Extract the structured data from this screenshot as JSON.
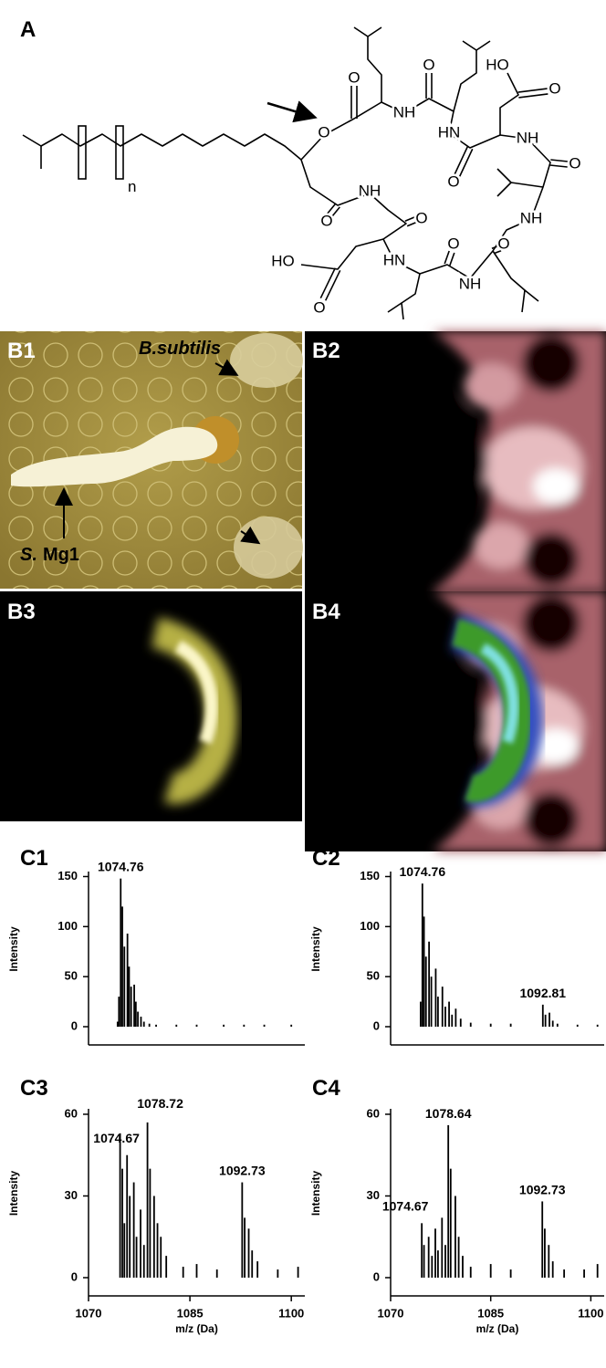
{
  "panel_a": {
    "label": "A",
    "repeat_subscript": "n",
    "atoms": [
      "O",
      "O",
      "NH",
      "O",
      "HO",
      "O",
      "HN",
      "NH",
      "O",
      "O",
      "NH",
      "O",
      "O",
      "NH",
      "HO",
      "HN",
      "O",
      "NH",
      "O",
      "O"
    ]
  },
  "panel_b": {
    "labels": [
      "B1",
      "B2",
      "B3",
      "B4"
    ],
    "organism_1": "B.subtilis",
    "organism_2_genus": "S.",
    "organism_2_strain": "Mg1"
  },
  "chart_data": [
    {
      "type": "bar",
      "title": "C1",
      "ylabel": "Intensity",
      "color": "#000000",
      "x": [
        1074.3,
        1074.5,
        1074.76,
        1075.0,
        1075.3,
        1075.76,
        1076.0,
        1076.3,
        1076.76,
        1077.0,
        1077.3,
        1077.76,
        1078.2,
        1079.0,
        1080.0,
        1083.0,
        1086.0,
        1090.0,
        1093.0,
        1096.0,
        1100.0
      ],
      "values": [
        5,
        30,
        148,
        120,
        80,
        93,
        60,
        40,
        42,
        25,
        15,
        10,
        5,
        3,
        2,
        2,
        2,
        2,
        2,
        2,
        2
      ],
      "xlim": [
        1070,
        1102
      ],
      "ylim": [
        0,
        155
      ],
      "yticks": [
        0,
        50,
        100,
        150
      ],
      "annotations": [
        {
          "text": "1074.76",
          "x": 1074.76,
          "y": 148
        }
      ]
    },
    {
      "type": "bar",
      "title": "C2",
      "ylabel": "Intensity",
      "color": "#000000",
      "x": [
        1074.5,
        1074.76,
        1075.0,
        1075.3,
        1075.76,
        1076.1,
        1076.76,
        1077.1,
        1077.76,
        1078.2,
        1078.76,
        1079.2,
        1079.76,
        1080.5,
        1082.0,
        1085.0,
        1088.0,
        1092.81,
        1093.2,
        1093.8,
        1094.3,
        1095.0,
        1098.0,
        1101.0
      ],
      "values": [
        25,
        143,
        110,
        70,
        85,
        50,
        58,
        30,
        40,
        20,
        25,
        12,
        18,
        8,
        4,
        3,
        3,
        22,
        12,
        14,
        6,
        3,
        2,
        2
      ],
      "xlim": [
        1070,
        1102
      ],
      "ylim": [
        0,
        155
      ],
      "yticks": [
        0,
        50,
        100,
        150
      ],
      "annotations": [
        {
          "text": "1074.76",
          "x": 1074.76,
          "y": 143
        },
        {
          "text": "1092.81",
          "x": 1092.81,
          "y": 22
        }
      ]
    },
    {
      "type": "bar",
      "title": "C3",
      "ylabel": "Intensity",
      "xlabel": "m/z (Da)",
      "color": "#000000",
      "x": [
        1074.67,
        1075.0,
        1075.3,
        1075.7,
        1076.1,
        1076.7,
        1077.1,
        1077.7,
        1078.2,
        1078.72,
        1079.1,
        1079.7,
        1080.2,
        1080.7,
        1081.5,
        1084.0,
        1086.0,
        1089.0,
        1092.73,
        1093.1,
        1093.7,
        1094.2,
        1095.0,
        1098.0,
        1101.0
      ],
      "values": [
        53,
        40,
        20,
        45,
        30,
        35,
        15,
        25,
        12,
        57,
        40,
        30,
        20,
        15,
        8,
        4,
        5,
        3,
        35,
        22,
        18,
        10,
        6,
        3,
        4
      ],
      "xlim": [
        1070,
        1102
      ],
      "ylim": [
        0,
        62
      ],
      "yticks": [
        0,
        30,
        60
      ],
      "xticks": [
        1070,
        1085,
        1100
      ],
      "annotations": [
        {
          "text": "1078.72",
          "x": 1078.72,
          "y": 57
        },
        {
          "text": "1074.67",
          "x": 1074.67,
          "y": 53
        },
        {
          "text": "1092.73",
          "x": 1092.73,
          "y": 35
        }
      ]
    },
    {
      "type": "bar",
      "title": "C4",
      "ylabel": "Intensity",
      "xlabel": "m/z (Da)",
      "color": "#000000",
      "x": [
        1074.67,
        1075.0,
        1075.7,
        1076.2,
        1076.7,
        1077.1,
        1077.7,
        1078.2,
        1078.64,
        1079.0,
        1079.7,
        1080.2,
        1080.8,
        1082.0,
        1085.0,
        1088.0,
        1092.73,
        1093.1,
        1093.7,
        1094.3,
        1096.0,
        1099.0,
        1101.0
      ],
      "values": [
        20,
        12,
        15,
        8,
        18,
        10,
        22,
        12,
        56,
        40,
        30,
        15,
        8,
        4,
        5,
        3,
        28,
        18,
        12,
        6,
        3,
        3,
        5
      ],
      "xlim": [
        1070,
        1102
      ],
      "ylim": [
        0,
        62
      ],
      "yticks": [
        0,
        30,
        60
      ],
      "xticks": [
        1070,
        1085,
        1100
      ],
      "annotations": [
        {
          "text": "1078.64",
          "x": 1078.64,
          "y": 56
        },
        {
          "text": "1074.67",
          "x": 1074.67,
          "y": 20
        },
        {
          "text": "1092.73",
          "x": 1092.73,
          "y": 28
        }
      ]
    }
  ]
}
